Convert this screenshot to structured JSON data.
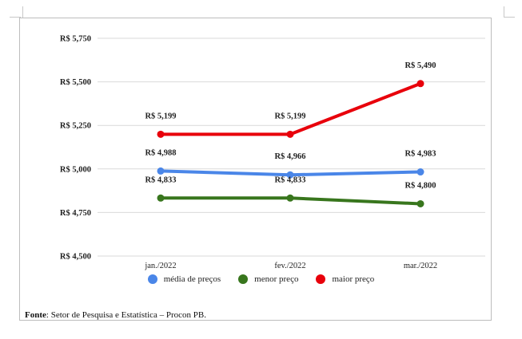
{
  "chart_data": {
    "type": "line",
    "title": "",
    "xlabel": "",
    "ylabel": "",
    "categories": [
      "jan./2022",
      "fev./2022",
      "mar./2022"
    ],
    "ylim": [
      4500,
      5750
    ],
    "yticks": [
      4500,
      4750,
      5000,
      5250,
      5500,
      5750
    ],
    "ytick_labels": [
      "R$ 4,500",
      "R$ 4,750",
      "R$ 5,000",
      "R$ 5,250",
      "R$ 5,500",
      "R$ 5,750"
    ],
    "grid": true,
    "legend_position": "bottom",
    "series": [
      {
        "name": "média de preços",
        "color": "#4a86e8",
        "values": [
          4988,
          4966,
          4983
        ],
        "labels": [
          "R$ 4,988",
          "R$ 4,966",
          "R$ 4,983"
        ]
      },
      {
        "name": "menor preço",
        "color": "#38761d",
        "values": [
          4833,
          4833,
          4800
        ],
        "labels": [
          "R$ 4,833",
          "R$ 4,833",
          "R$ 4,800"
        ]
      },
      {
        "name": "maior preço",
        "color": "#e8000b",
        "values": [
          5199,
          5199,
          5490
        ],
        "labels": [
          "R$ 5,199",
          "R$ 5,199",
          "R$ 5,490"
        ]
      }
    ]
  },
  "source": {
    "label": "Fonte",
    "text": ": Setor de Pesquisa e Estatística – Procon PB."
  }
}
